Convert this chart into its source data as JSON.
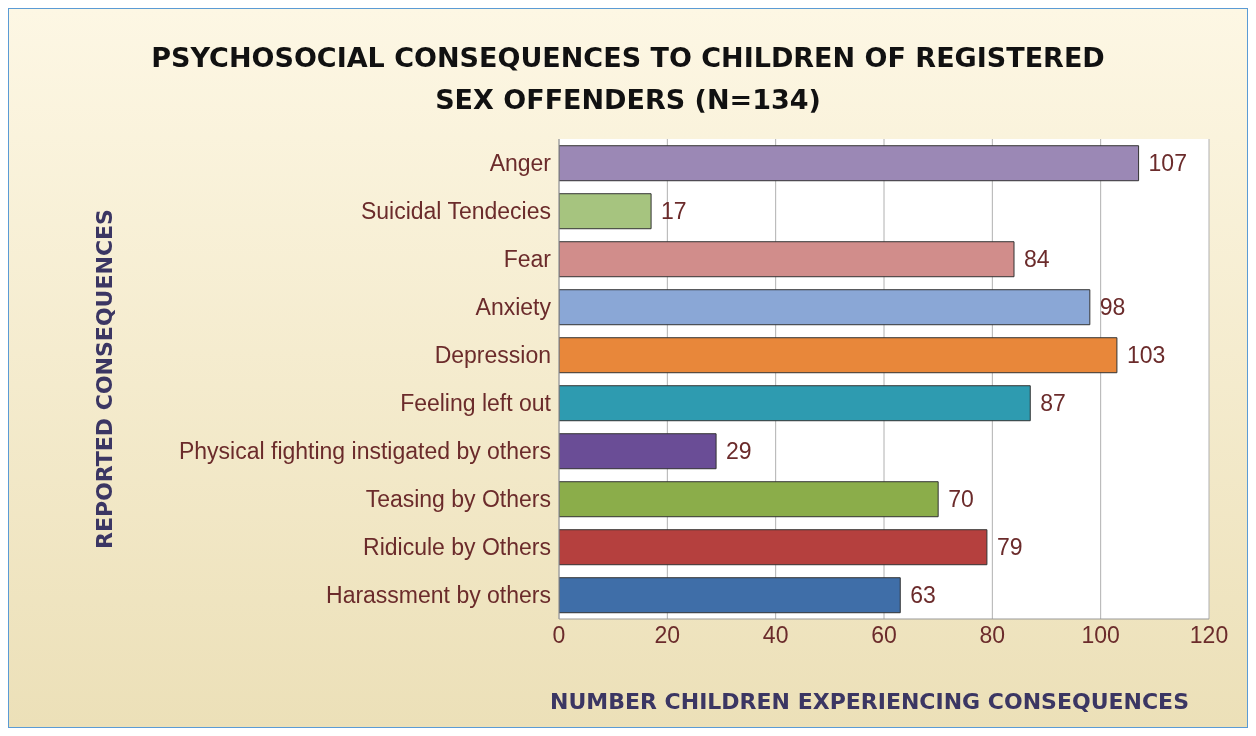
{
  "chart_data": {
    "type": "bar",
    "orientation": "horizontal",
    "title": "PSYCHOSOCIAL CONSEQUENCES TO CHILDREN OF REGISTERED SEX OFFENDERS (N=134)",
    "xlabel": "NUMBER CHILDREN EXPERIENCING CONSEQUENCES",
    "ylabel": "REPORTED CONSEQUENCES",
    "categories": [
      "Anger",
      "Suicidal Tendecies",
      "Fear",
      "Anxiety",
      "Depression",
      "Feeling left out",
      "Physical fighting instigated by others",
      "Teasing by Others",
      "Ridicule by Others",
      "Harassment by others"
    ],
    "values": [
      107,
      17,
      84,
      98,
      103,
      87,
      29,
      70,
      79,
      63
    ],
    "colors": [
      "#9b88b5",
      "#a6c47f",
      "#d18d8b",
      "#8aa7d6",
      "#e8873a",
      "#2e9bb0",
      "#6a4d96",
      "#8bad4a",
      "#b5403e",
      "#3f6ea8"
    ],
    "xlim": [
      0,
      120
    ],
    "xticks": [
      0,
      20,
      40,
      60,
      80,
      100,
      120
    ],
    "grid": "x",
    "data_labels": true
  }
}
